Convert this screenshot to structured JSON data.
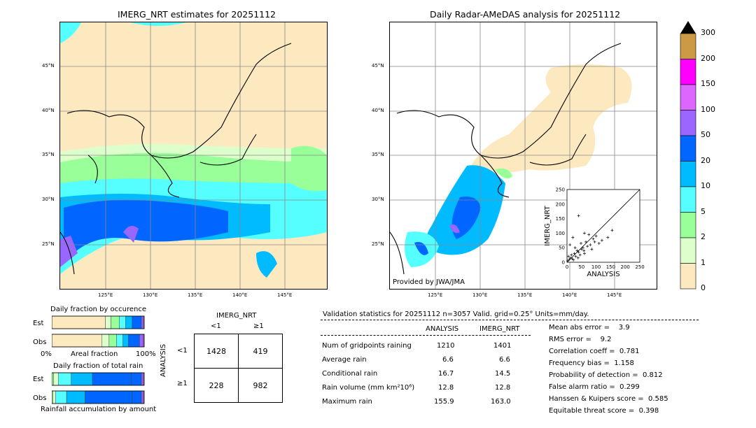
{
  "left_map": {
    "title": "IMERG_NRT estimates for 20251112",
    "lat_labels": [
      "45°N",
      "40°N",
      "35°N",
      "30°N",
      "25°N"
    ],
    "lon_labels": [
      "125°E",
      "130°E",
      "135°E",
      "140°E",
      "145°E"
    ]
  },
  "right_map": {
    "title": "Daily Radar-AMeDAS analysis for 20251112",
    "lat_labels": [
      "45°N",
      "40°N",
      "35°N",
      "30°N",
      "25°N"
    ],
    "lon_labels": [
      "125°E",
      "130°E",
      "135°E",
      "140°E",
      "145°E"
    ],
    "credit": "Provided by JWA/JMA"
  },
  "colorbar": {
    "labels": [
      "300",
      "200",
      "150",
      "100",
      "50",
      "20",
      "10",
      "5",
      "2",
      "1",
      "0"
    ],
    "colors": [
      "#cc9944",
      "#ff00ff",
      "#dd66ff",
      "#9966ff",
      "#0066ff",
      "#00bbff",
      "#55ffff",
      "#99ff99",
      "#ddffcc",
      "#fde9bf"
    ]
  },
  "fraction_occurrence": {
    "title": "Daily fraction by occurence",
    "row_labels": [
      "Est",
      "Obs"
    ],
    "axis_left": "0%",
    "axis_mid": "Areal fraction",
    "axis_right": "100%"
  },
  "fraction_rain": {
    "title": "Daily fraction of total rain",
    "row_labels": [
      "Est",
      "Obs"
    ],
    "footer": "Rainfall accumulation by amount"
  },
  "contingency": {
    "col_title": "IMERG_NRT",
    "col_labels": [
      "<1",
      "≥1"
    ],
    "row_title": "ANALYSIS",
    "row_labels": [
      "<1",
      "≥1"
    ],
    "cells": [
      [
        "1428",
        "419"
      ],
      [
        "228",
        "982"
      ]
    ]
  },
  "validation": {
    "header": "Validation statistics for 20251112  n=3057 Valid. grid=0.25° Units=mm/day.",
    "col_headers": [
      "ANALYSIS",
      "IMERG_NRT"
    ],
    "rows": [
      {
        "label": "Num of gridpoints raining",
        "a": "1210",
        "b": "1401"
      },
      {
        "label": "Average rain",
        "a": "6.6",
        "b": "6.6"
      },
      {
        "label": "Conditional rain",
        "a": "16.7",
        "b": "14.5"
      },
      {
        "label": "Rain volume (mm km²10⁶)",
        "a": "12.8",
        "b": "12.8"
      },
      {
        "label": "Maximum rain",
        "a": "155.9",
        "b": "163.0"
      }
    ],
    "scores": [
      "Mean abs error =    3.9",
      "RMS error =    9.2",
      "Correlation coeff =  0.781",
      "Frequency bias =  1.158",
      "Probability of detection =  0.812",
      "False alarm ratio =  0.299",
      "Hanssen & Kuipers score =  0.585",
      "Equitable threat score =  0.398"
    ]
  },
  "chart_data": [
    {
      "type": "bar",
      "title": "Daily fraction by occurence",
      "categories": [
        "Est",
        "Obs"
      ],
      "series": [
        {
          "values": [
            0.58,
            0.54
          ]
        },
        {
          "values": [
            0.06,
            0.08
          ]
        },
        {
          "values": [
            0.09,
            0.08
          ]
        },
        {
          "values": [
            0.07,
            0.07
          ]
        },
        {
          "values": [
            0.07,
            0.06
          ]
        },
        {
          "values": [
            0.1,
            0.12
          ]
        },
        {
          "values": [
            0.02,
            0.04
          ]
        },
        {
          "values": [
            0.01,
            0.01
          ]
        }
      ],
      "colors": [
        "#fde9bf",
        "#ddffcc",
        "#99ff99",
        "#55ffff",
        "#00bbff",
        "#0066ff",
        "#9966ff",
        "#dd66ff"
      ],
      "xlabel": "Areal fraction"
    },
    {
      "type": "bar",
      "title": "Daily fraction of total rain",
      "categories": [
        "Est",
        "Obs"
      ],
      "series": [
        {
          "values": [
            0.02,
            0.01
          ]
        },
        {
          "values": [
            0.05,
            0.03
          ]
        },
        {
          "values": [
            0.14,
            0.12
          ]
        },
        {
          "values": [
            0.23,
            0.2
          ]
        },
        {
          "values": [
            0.42,
            0.51
          ]
        },
        {
          "values": [
            0.11,
            0.1
          ]
        },
        {
          "values": [
            0.02,
            0.02
          ]
        },
        {
          "values": [
            0.01,
            0.01
          ]
        }
      ],
      "colors": [
        "#99ff99",
        "#ddffcc",
        "#55ffff",
        "#00bbff",
        "#0066ff",
        "#0066ff",
        "#9966ff",
        "#dd66ff"
      ],
      "xlabel": "Rainfall accumulation by amount"
    },
    {
      "type": "scatter",
      "xlabel": "ANALYSIS",
      "ylabel": "IMERG_NRT",
      "xlim": [
        0,
        250
      ],
      "ylim": [
        0,
        250
      ],
      "xticks": [
        "0",
        "50",
        "100",
        "150",
        "200",
        "250"
      ],
      "yticks": [
        "0",
        "50",
        "100",
        "150",
        "200",
        "250"
      ],
      "x": [
        3,
        8,
        12,
        18,
        25,
        30,
        35,
        40,
        45,
        50,
        55,
        60,
        65,
        70,
        80,
        90,
        100,
        120,
        140,
        155,
        5,
        15,
        22,
        28,
        38,
        48,
        58,
        75,
        95,
        110,
        40,
        60,
        85,
        10,
        20
      ],
      "y": [
        5,
        10,
        15,
        12,
        30,
        20,
        40,
        35,
        25,
        45,
        50,
        30,
        70,
        55,
        60,
        80,
        90,
        75,
        85,
        110,
        20,
        25,
        8,
        50,
        15,
        65,
        40,
        95,
        70,
        65,
        160,
        100,
        45,
        60,
        85
      ]
    }
  ]
}
